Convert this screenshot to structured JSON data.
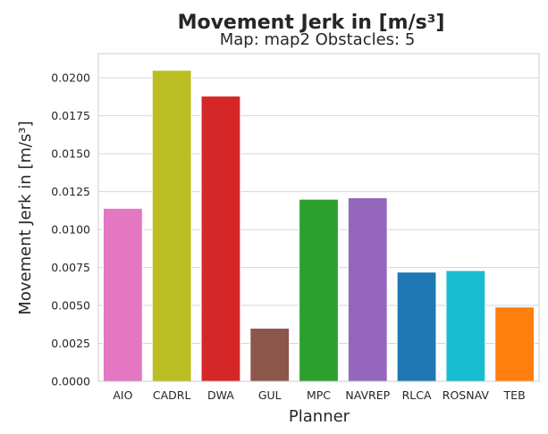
{
  "chart_data": {
    "type": "bar",
    "title": "Movement Jerk in [m/s³]",
    "subtitle": "Map: map2 Obstacles: 5",
    "xlabel": "Planner",
    "ylabel": "Movement Jerk in [m/s³]",
    "categories": [
      "AIO",
      "CADRL",
      "DWA",
      "GUL",
      "MPC",
      "NAVREP",
      "RLCA",
      "ROSNAV",
      "TEB"
    ],
    "values": [
      0.0114,
      0.0205,
      0.0188,
      0.0035,
      0.012,
      0.0121,
      0.0072,
      0.0073,
      0.0049
    ],
    "colors": [
      "#e377c2",
      "#bcbd22",
      "#d62728",
      "#8c564b",
      "#2ca02c",
      "#9467bd",
      "#1f77b4",
      "#17becf",
      "#ff7f0e"
    ],
    "ylim": [
      0,
      0.0216
    ],
    "yticks": [
      "0.0000",
      "0.0025",
      "0.0050",
      "0.0075",
      "0.0100",
      "0.0125",
      "0.0150",
      "0.0175",
      "0.0200"
    ],
    "grid": true,
    "legend": "none"
  }
}
